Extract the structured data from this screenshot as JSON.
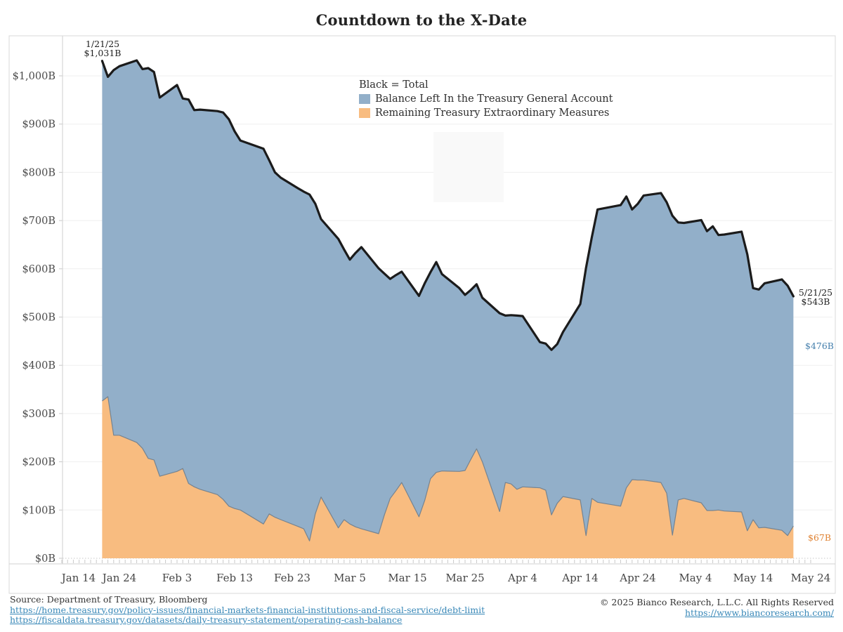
{
  "title": "Countdown to the X-Date",
  "legend": {
    "total_label": "Black = Total",
    "items": [
      {
        "label": "Balance Left In the Treasury General Account",
        "color": "#92afc9"
      },
      {
        "label": "Remaining Treasury Extraordinary Measures",
        "color": "#f8bc80"
      }
    ]
  },
  "annotations": {
    "start": {
      "date": "1/21/25",
      "value": "$1,031B"
    },
    "end": {
      "date": "5/21/25",
      "value": "$543B"
    },
    "tga_end": {
      "text": "$476B",
      "color": "#4680ad"
    },
    "measures_end": {
      "text": "$67B",
      "color": "#e08334"
    }
  },
  "footer": {
    "source": "Source: Department of Treasury, Bloomberg",
    "link1": "https://home.treasury.gov/policy-issues/financial-markets-financial-institutions-and-fiscal-service/debt-limit",
    "link2": "https://fiscaldata.treasury.gov/datasets/daily-treasury-statement/operating-cash-balance",
    "copyright": "© 2025 Bianco Research, L.L.C. All Rights Reserved",
    "site_link": "https://www.biancoresearch.com/"
  },
  "chart_data": {
    "type": "area",
    "stacked": true,
    "title": "Countdown to the X-Date",
    "grid": "horizontal",
    "ylim": [
      0,
      1050
    ],
    "yticks": [
      0,
      100,
      200,
      300,
      400,
      500,
      600,
      700,
      800,
      900,
      1000
    ],
    "ytick_format": "$#,###B",
    "xticks": [
      "Jan 14",
      "Jan 24",
      "Feb 3",
      "Feb 13",
      "Feb 23",
      "Mar 5",
      "Mar 15",
      "Mar 25",
      "Apr 4",
      "Apr 14",
      "Apr 24",
      "May 4",
      "May 14",
      "May 24"
    ],
    "x": [
      "1/21",
      "1/22",
      "1/23",
      "1/24",
      "1/27",
      "1/28",
      "1/29",
      "1/30",
      "1/31",
      "2/3",
      "2/4",
      "2/5",
      "2/6",
      "2/7",
      "2/10",
      "2/11",
      "2/12",
      "2/13",
      "2/14",
      "2/18",
      "2/19",
      "2/20",
      "2/21",
      "2/24",
      "2/25",
      "2/26",
      "2/27",
      "2/28",
      "3/3",
      "3/4",
      "3/5",
      "3/6",
      "3/7",
      "3/10",
      "3/11",
      "3/12",
      "3/13",
      "3/14",
      "3/17",
      "3/18",
      "3/19",
      "3/20",
      "3/21",
      "3/24",
      "3/25",
      "3/26",
      "3/27",
      "3/28",
      "3/31",
      "4/1",
      "4/2",
      "4/3",
      "4/4",
      "4/7",
      "4/8",
      "4/9",
      "4/10",
      "4/11",
      "4/14",
      "4/15",
      "4/16",
      "4/17",
      "4/21",
      "4/22",
      "4/23",
      "4/24",
      "4/25",
      "4/28",
      "4/29",
      "4/30",
      "5/1",
      "5/2",
      "5/5",
      "5/6",
      "5/7",
      "5/8",
      "5/9",
      "5/12",
      "5/13",
      "5/14",
      "5/15",
      "5/16",
      "5/19",
      "5/20",
      "5/21"
    ],
    "series": [
      {
        "name": "Remaining Treasury Extraordinary Measures",
        "role": "measures",
        "color": "#f8bc80",
        "values": [
          326,
          335,
          255,
          255,
          240,
          228,
          207,
          204,
          170,
          180,
          186,
          155,
          148,
          143,
          132,
          122,
          108,
          103,
          100,
          71,
          92,
          85,
          80,
          66,
          61,
          36,
          92,
          127,
          63,
          80,
          71,
          65,
          61,
          51,
          90,
          124,
          140,
          157,
          86,
          120,
          165,
          178,
          181,
          180,
          182,
          205,
          227,
          200,
          97,
          157,
          154,
          143,
          148,
          146,
          141,
          90,
          114,
          128,
          121,
          47,
          124,
          116,
          108,
          146,
          163,
          162,
          162,
          157,
          135,
          48,
          121,
          124,
          115,
          99,
          99,
          100,
          98,
          96,
          57,
          80,
          63,
          64,
          58,
          47,
          67
        ]
      },
      {
        "name": "Balance Left In the Treasury General Account",
        "role": "tga",
        "color": "#92afc9",
        "values": [
          705,
          663,
          757,
          765,
          792,
          786,
          809,
          804,
          785,
          801,
          767,
          796,
          781,
          787,
          795,
          802,
          802,
          782,
          766,
          778,
          733,
          715,
          709,
          701,
          699,
          718,
          643,
          576,
          599,
          560,
          548,
          568,
          584,
          550,
          500,
          455,
          447,
          437,
          458,
          450,
          428,
          436,
          408,
          380,
          364,
          351,
          341,
          340,
          411,
          346,
          350,
          360,
          354,
          302,
          304,
          342,
          330,
          341,
          406,
          555,
          541,
          607,
          624,
          604,
          561,
          573,
          590,
          600,
          603,
          662,
          575,
          571,
          586,
          579,
          589,
          570,
          573,
          581,
          573,
          480,
          494,
          506,
          520,
          518,
          476
        ]
      },
      {
        "name": "Total",
        "role": "total",
        "color": "#1b1b1b",
        "values": [
          1031,
          998,
          1012,
          1020,
          1032,
          1014,
          1016,
          1008,
          955,
          981,
          953,
          951,
          929,
          930,
          927,
          924,
          910,
          885,
          866,
          849,
          825,
          800,
          789,
          767,
          760,
          754,
          735,
          703,
          662,
          640,
          619,
          633,
          645,
          601,
          590,
          579,
          587,
          594,
          544,
          570,
          593,
          614,
          589,
          560,
          546,
          556,
          568,
          540,
          508,
          503,
          504,
          503,
          502,
          448,
          445,
          432,
          444,
          469,
          527,
          602,
          665,
          723,
          732,
          750,
          723,
          735,
          752,
          757,
          738,
          710,
          696,
          695,
          701,
          678,
          688,
          670,
          671,
          677,
          630,
          560,
          557,
          570,
          578,
          565,
          543
        ]
      }
    ],
    "annotated_points": [
      {
        "date": "1/21/25",
        "total": 1031
      },
      {
        "date": "5/21/25",
        "total": 543,
        "tga": 476,
        "measures": 67
      }
    ]
  }
}
